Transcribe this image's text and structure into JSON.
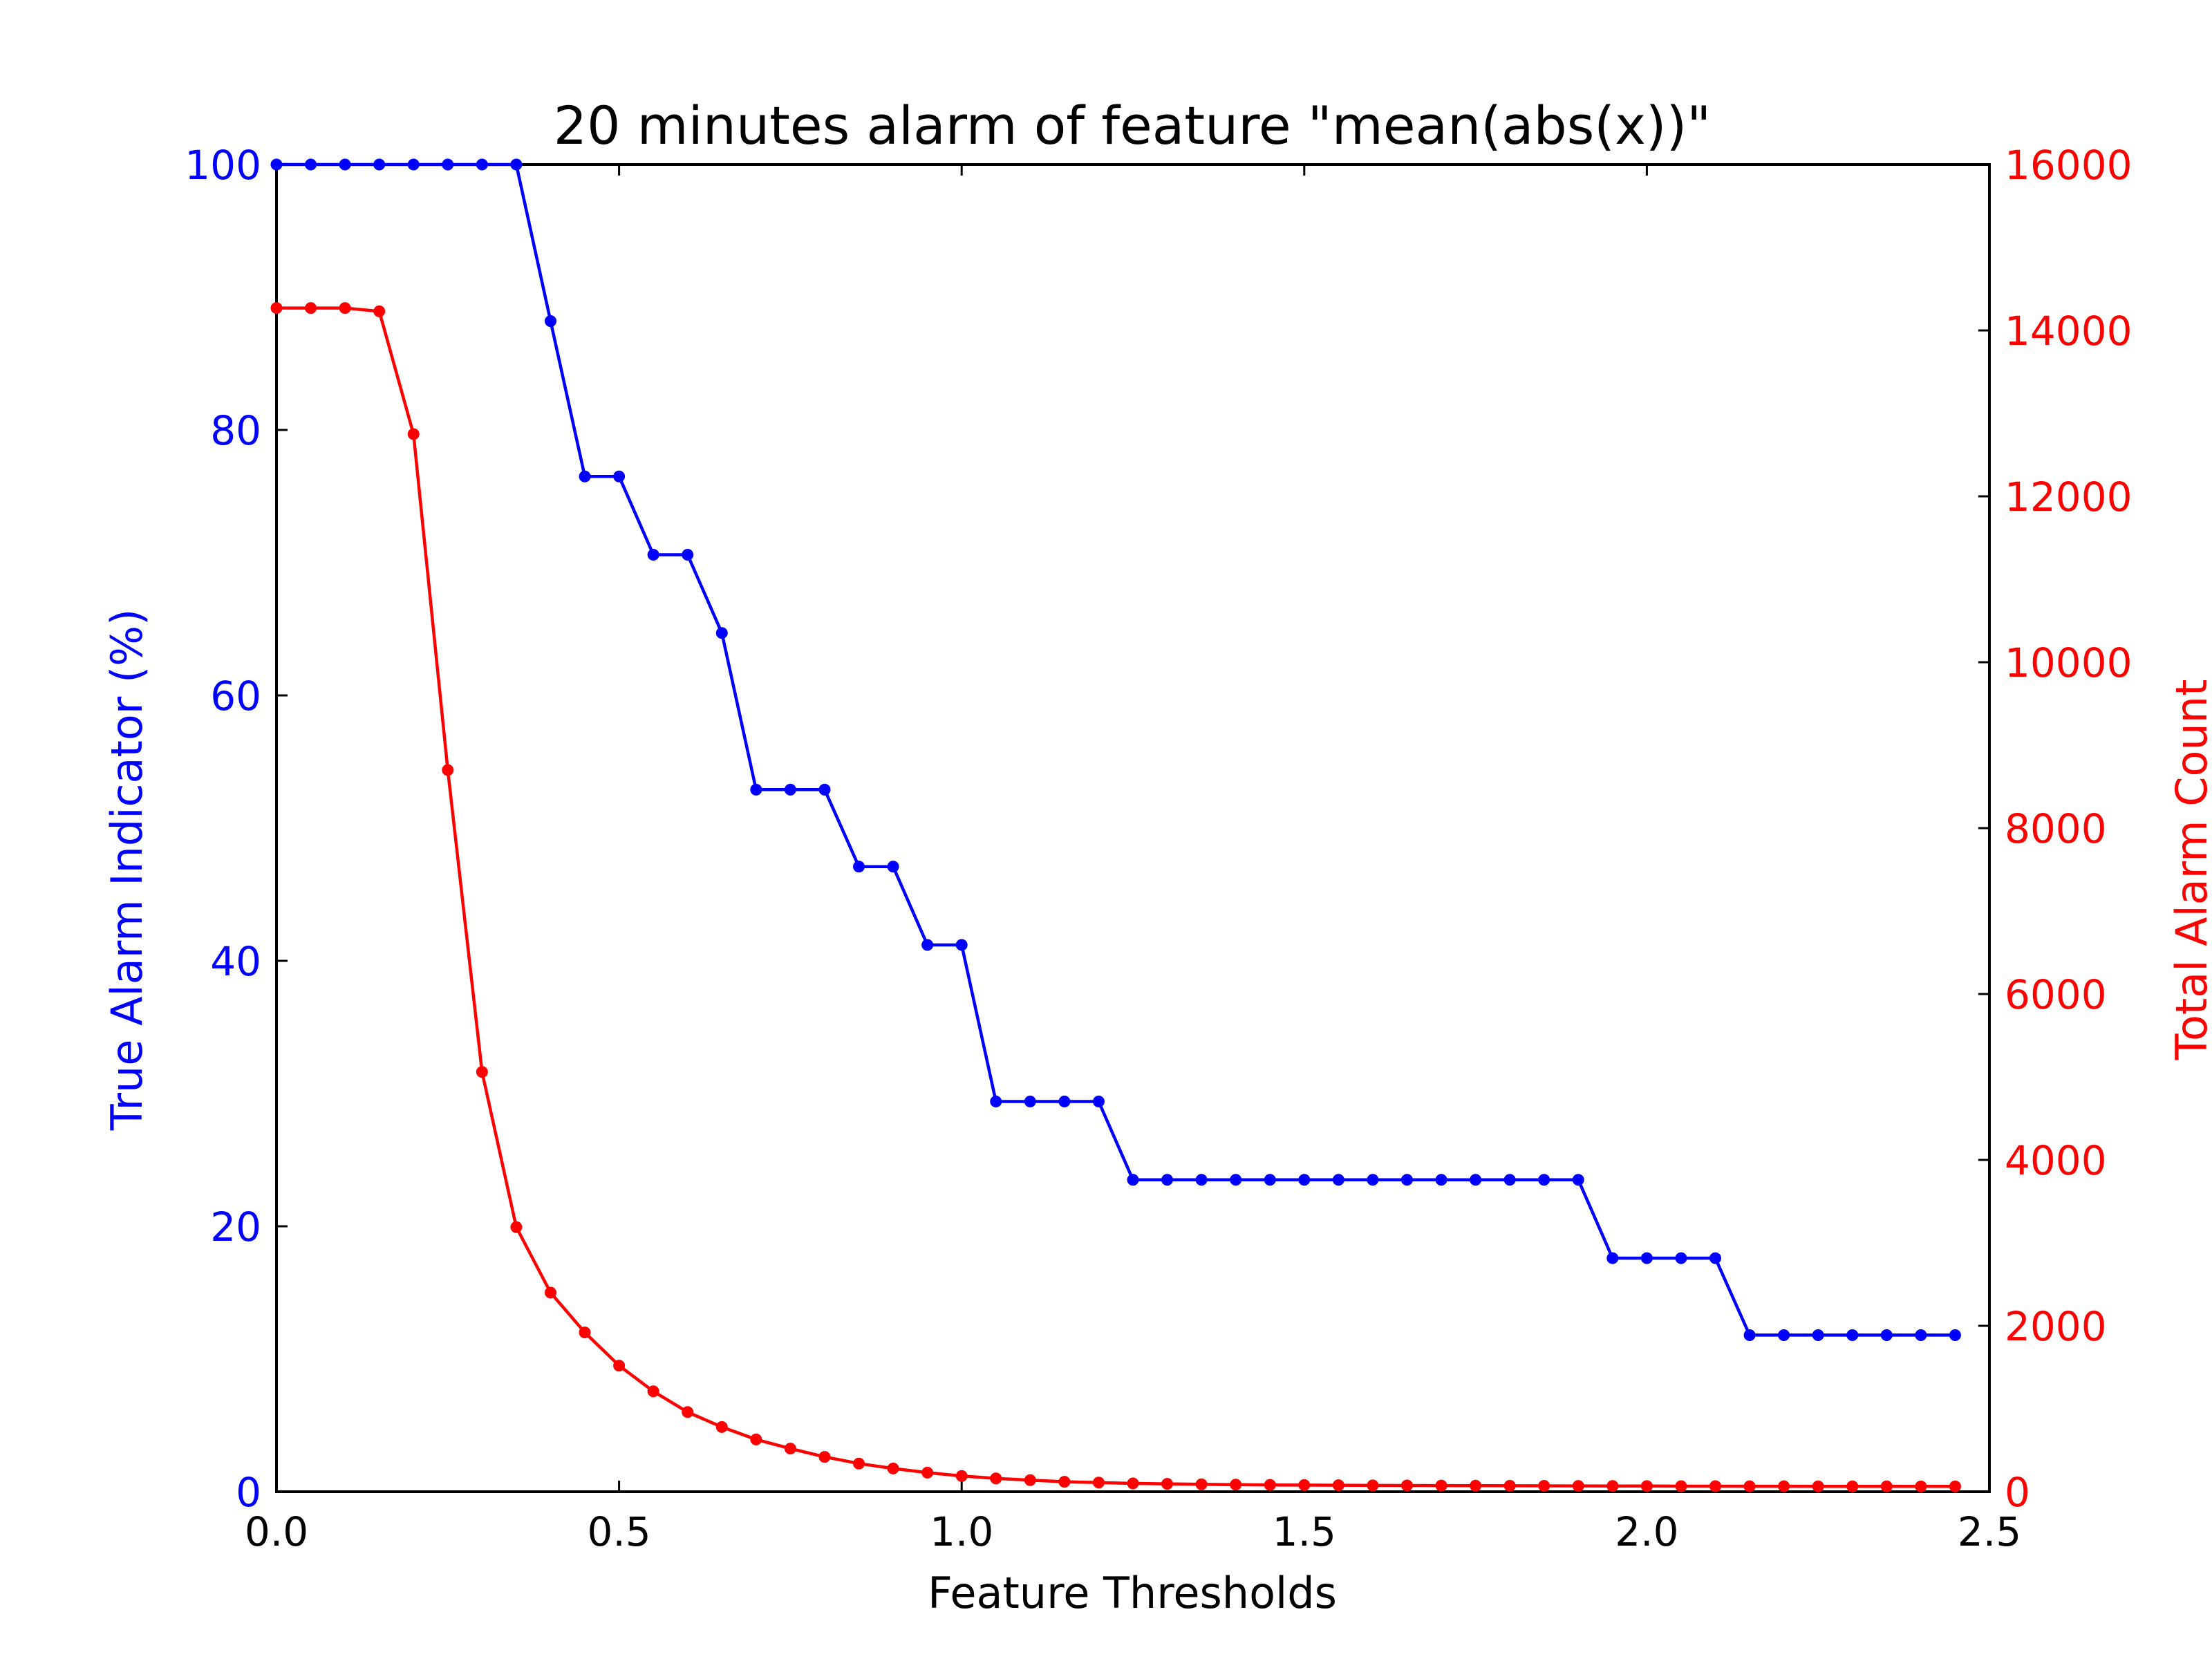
{
  "chart_data": {
    "type": "line",
    "title": "20 minutes alarm of feature \"mean(abs(x))\"",
    "xlabel": "Feature Thresholds",
    "ylabel_left": "True Alarm Indicator (%)",
    "ylabel_right": "Total Alarm Count",
    "xlim": [
      0,
      2.5
    ],
    "ylim_left": [
      0,
      100
    ],
    "ylim_right": [
      0,
      16000
    ],
    "xticks": [
      "0.0",
      "0.5",
      "1.0",
      "1.5",
      "2.0",
      "2.5"
    ],
    "yticks_left": [
      "0",
      "20",
      "40",
      "60",
      "80",
      "100"
    ],
    "yticks_right": [
      "0",
      "2000",
      "4000",
      "6000",
      "8000",
      "10000",
      "12000",
      "14000",
      "16000"
    ],
    "grid": false,
    "x": [
      0.0,
      0.05,
      0.1,
      0.15,
      0.2,
      0.25,
      0.3,
      0.35,
      0.4,
      0.45,
      0.5,
      0.55,
      0.6,
      0.65,
      0.7,
      0.75,
      0.8,
      0.85,
      0.9,
      0.95,
      1.0,
      1.05,
      1.1,
      1.15,
      1.2,
      1.25,
      1.3,
      1.35,
      1.4,
      1.45,
      1.5,
      1.55,
      1.6,
      1.65,
      1.7,
      1.75,
      1.8,
      1.85,
      1.9,
      1.95,
      2.0,
      2.05,
      2.1,
      2.15,
      2.2,
      2.25,
      2.3,
      2.35,
      2.4,
      2.45
    ],
    "series": [
      {
        "name": "True Alarm Indicator (%)",
        "axis": "left",
        "color": "#0000ff",
        "values": [
          100,
          100,
          100,
          100,
          100,
          100,
          100,
          100,
          88.2,
          76.5,
          76.5,
          70.6,
          70.6,
          64.7,
          52.9,
          52.9,
          52.9,
          47.1,
          47.1,
          41.2,
          41.2,
          29.4,
          29.4,
          29.4,
          29.4,
          23.5,
          23.5,
          23.5,
          23.5,
          23.5,
          23.5,
          23.5,
          23.5,
          23.5,
          23.5,
          23.5,
          23.5,
          23.5,
          23.5,
          17.6,
          17.6,
          17.6,
          17.6,
          11.8,
          11.8,
          11.8,
          11.8,
          11.8,
          11.8,
          11.8
        ]
      },
      {
        "name": "Total Alarm Count",
        "axis": "right",
        "color": "#ff0000",
        "values": [
          14270,
          14270,
          14270,
          14230,
          12750,
          8700,
          5060,
          3190,
          2400,
          1920,
          1520,
          1210,
          960,
          780,
          630,
          520,
          420,
          340,
          280,
          230,
          190,
          160,
          140,
          120,
          110,
          100,
          95,
          90,
          85,
          82,
          80,
          78,
          76,
          75,
          74,
          73,
          72,
          71,
          70,
          69,
          68,
          67,
          67,
          66,
          66,
          65,
          65,
          65,
          64,
          64
        ]
      }
    ]
  }
}
